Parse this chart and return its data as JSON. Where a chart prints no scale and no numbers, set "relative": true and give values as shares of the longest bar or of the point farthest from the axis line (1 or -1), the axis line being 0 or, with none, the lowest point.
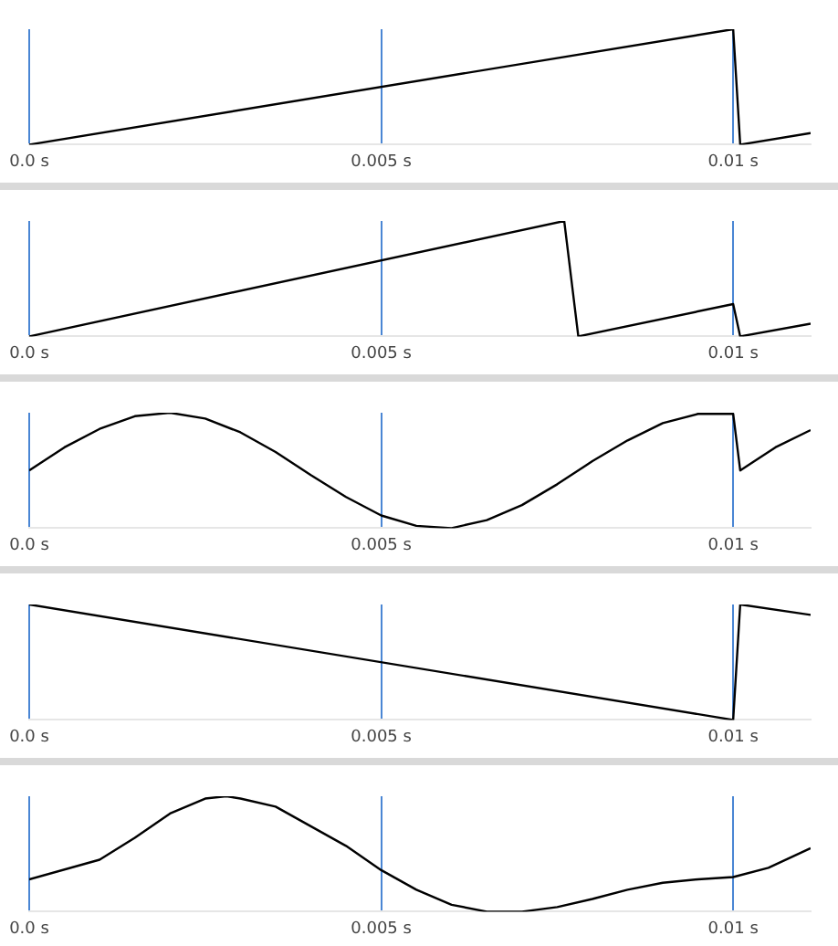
{
  "chart_data": [
    {
      "type": "line",
      "relative": true,
      "grid": "x",
      "tick_labels": "x",
      "marker": "none",
      "line_style": "solid",
      "legend": false,
      "xticks": [
        {
          "value": 0,
          "label": "0.0 s"
        },
        {
          "value": 0.005,
          "label": "0.005 s"
        },
        {
          "value": 0.01,
          "label": "0.01 s"
        }
      ],
      "xlim": [
        0,
        0.0111
      ],
      "series": [
        {
          "color": "#000000",
          "x": [
            0,
            0.01,
            0.0101,
            0.0111
          ],
          "values": [
            0,
            1,
            0,
            0.1
          ]
        }
      ]
    },
    {
      "type": "line",
      "relative": true,
      "grid": "x",
      "tick_labels": "x",
      "marker": "none",
      "line_style": "solid",
      "legend": false,
      "xticks": [
        {
          "value": 0,
          "label": "0.0 s"
        },
        {
          "value": 0.005,
          "label": "0.005 s"
        },
        {
          "value": 0.01,
          "label": "0.01 s"
        }
      ],
      "xlim": [
        0,
        0.0111
      ],
      "series": [
        {
          "color": "#000000",
          "x": [
            0,
            0.0076,
            0.0078,
            0.01,
            0.0101,
            0.0111
          ],
          "values": [
            0,
            1,
            0,
            0.28,
            0,
            0.11
          ]
        }
      ]
    },
    {
      "type": "line",
      "relative": true,
      "grid": "x",
      "tick_labels": "x",
      "marker": "none",
      "line_style": "solid",
      "legend": false,
      "xticks": [
        {
          "value": 0,
          "label": "0.0 s"
        },
        {
          "value": 0.005,
          "label": "0.005 s"
        },
        {
          "value": 0.01,
          "label": "0.01 s"
        }
      ],
      "xlim": [
        0,
        0.0111
      ],
      "series": [
        {
          "color": "#000000",
          "x": [
            0,
            0.0005,
            0.001,
            0.0015,
            0.002,
            0.0025,
            0.003,
            0.0035,
            0.004,
            0.0045,
            0.005,
            0.0055,
            0.006,
            0.0065,
            0.007,
            0.0075,
            0.008,
            0.0085,
            0.009,
            0.0095,
            0.01,
            0.0101,
            0.0106,
            0.0111
          ],
          "values": [
            0.5,
            0.7,
            0.86,
            0.97,
            1,
            0.95,
            0.83,
            0.66,
            0.46,
            0.27,
            0.11,
            0.02,
            0,
            0.07,
            0.2,
            0.38,
            0.58,
            0.76,
            0.91,
            0.99,
            0.99,
            0.5,
            0.7,
            0.85
          ]
        }
      ]
    },
    {
      "type": "line",
      "relative": true,
      "grid": "x",
      "tick_labels": "x",
      "marker": "none",
      "line_style": "solid",
      "legend": false,
      "xticks": [
        {
          "value": 0,
          "label": "0.0 s"
        },
        {
          "value": 0.005,
          "label": "0.005 s"
        },
        {
          "value": 0.01,
          "label": "0.01 s"
        }
      ],
      "xlim": [
        0,
        0.0111
      ],
      "series": [
        {
          "color": "#000000",
          "x": [
            0,
            0.01,
            0.0101,
            0.0111
          ],
          "values": [
            1,
            0,
            1,
            0.91
          ]
        }
      ]
    },
    {
      "type": "line",
      "relative": true,
      "grid": "x",
      "tick_labels": "x",
      "marker": "none",
      "line_style": "solid",
      "legend": false,
      "xticks": [
        {
          "value": 0,
          "label": "0.0 s"
        },
        {
          "value": 0.005,
          "label": "0.005 s"
        },
        {
          "value": 0.01,
          "label": "0.01 s"
        }
      ],
      "xlim": [
        0,
        0.0111
      ],
      "series": [
        {
          "color": "#000000",
          "x": [
            0,
            0.001,
            0.0015,
            0.002,
            0.0025,
            0.0028,
            0.003,
            0.0035,
            0.004,
            0.0045,
            0.005,
            0.0055,
            0.006,
            0.0065,
            0.007,
            0.0075,
            0.008,
            0.0085,
            0.009,
            0.0095,
            0.01,
            0.0105,
            0.0111
          ],
          "values": [
            0.28,
            0.45,
            0.64,
            0.85,
            0.98,
            1,
            0.98,
            0.91,
            0.74,
            0.57,
            0.36,
            0.19,
            0.06,
            0,
            0,
            0.04,
            0.11,
            0.19,
            0.25,
            0.28,
            0.3,
            0.38,
            0.55
          ]
        }
      ]
    }
  ]
}
